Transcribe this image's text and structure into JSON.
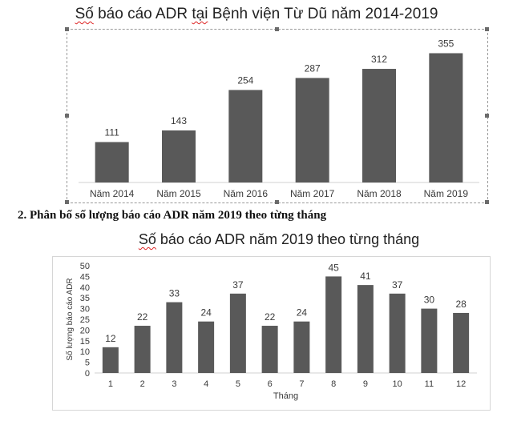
{
  "section_heading": "2. Phân bố số lượng báo cáo ADR năm 2019 theo từng tháng",
  "chart_data": [
    {
      "type": "bar",
      "title": "Số báo cáo ADR tại Bệnh viện Từ Dũ năm 2014-2019",
      "title_parts": [
        "Số",
        " báo cáo ADR ",
        "tại",
        " Bệnh viện Từ Dũ năm 2014-2019"
      ],
      "categories": [
        "Năm 2014",
        "Năm 2015",
        "Năm 2016",
        "Năm 2017",
        "Năm 2018",
        "Năm 2019"
      ],
      "values": [
        111,
        143,
        254,
        287,
        312,
        355
      ],
      "xlabel": "",
      "ylabel": "",
      "ylim": [
        0,
        400
      ],
      "grid": false,
      "bar_color": "#595959"
    },
    {
      "type": "bar",
      "title": "Số báo cáo ADR năm 2019 theo từng tháng",
      "title_parts": [
        "Số",
        " báo cáo ADR năm 2019 theo từng tháng"
      ],
      "categories": [
        "1",
        "2",
        "3",
        "4",
        "5",
        "6",
        "7",
        "8",
        "9",
        "10",
        "11",
        "12"
      ],
      "values": [
        12,
        22,
        33,
        24,
        37,
        22,
        24,
        45,
        41,
        37,
        30,
        28
      ],
      "xlabel": "Tháng",
      "ylabel": "Số lượng báo cáo ADR",
      "ylim": [
        0,
        50
      ],
      "yticks": [
        0,
        5,
        10,
        15,
        20,
        25,
        30,
        35,
        40,
        45,
        50
      ],
      "grid": false,
      "bar_color": "#595959"
    }
  ]
}
